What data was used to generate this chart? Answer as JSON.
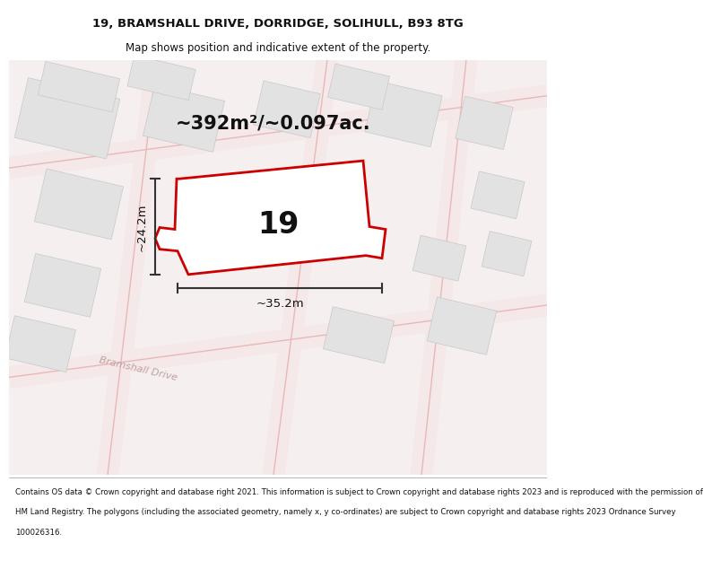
{
  "title_line1": "19, BRAMSHALL DRIVE, DORRIDGE, SOLIHULL, B93 8TG",
  "title_line2": "Map shows position and indicative extent of the property.",
  "footer_lines": [
    "Contains OS data © Crown copyright and database right 2021. This information is subject to Crown copyright and database rights 2023 and is reproduced with the permission of",
    "HM Land Registry. The polygons (including the associated geometry, namely x, y co-ordinates) are subject to Crown copyright and database rights 2023 Ordnance Survey",
    "100026316."
  ],
  "area_label": "~392m²/~0.097ac.",
  "number_label": "19",
  "dim_width_label": "~35.2m",
  "dim_height_label": "~24.2m",
  "map_bg": "#f5efef",
  "block_fill": "#e2e2e2",
  "block_ec": "#c8c8c8",
  "road_fill": "#f5e8e8",
  "road_line": "#e8b8b8",
  "plot_fill": "#ffffff",
  "plot_outline": "#cc0000",
  "dim_line_color": "#333333",
  "text_color": "#111111",
  "road_text_color": "#c0a0a0",
  "title_fontsize": 9.5,
  "subtitle_fontsize": 8.5,
  "area_fontsize": 15,
  "number_fontsize": 24,
  "dim_fontsize": 9.5,
  "footer_fontsize": 6.2
}
